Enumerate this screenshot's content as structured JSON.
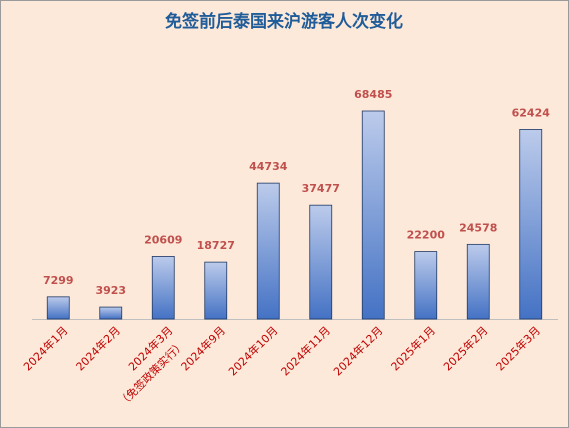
{
  "chart_data": {
    "type": "bar",
    "title": "免签前后泰国来沪游客人次变化",
    "categories": [
      "2024年1月",
      "2024年2月",
      "2024年3月",
      "2024年9月",
      "2024年10月",
      "2024年11月",
      "2024年12月",
      "2025年1月",
      "2025年2月",
      "2025年3月"
    ],
    "category_notes": [
      null,
      null,
      "（免签政策实行）",
      null,
      null,
      null,
      null,
      null,
      null,
      null
    ],
    "values": [
      7299,
      3923,
      20609,
      18727,
      44734,
      37477,
      68485,
      22200,
      24578,
      62424
    ],
    "color": "#4472c4"
  }
}
